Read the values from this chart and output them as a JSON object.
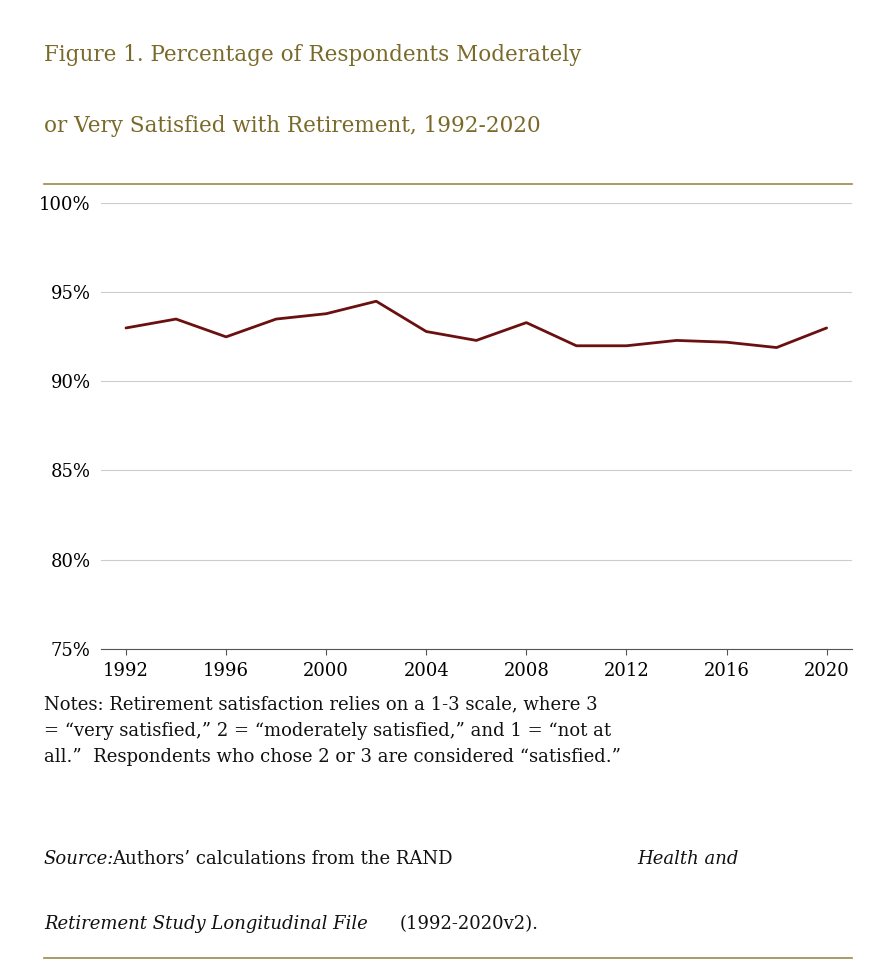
{
  "title_line1": "Figure 1. Percentage of Respondents Moderately",
  "title_line2": "or Very Satisfied with Retirement, 1992-2020",
  "years": [
    1992,
    1994,
    1996,
    1998,
    2000,
    2002,
    2004,
    2006,
    2008,
    2010,
    2012,
    2014,
    2016,
    2018,
    2020
  ],
  "values": [
    93.0,
    93.5,
    92.5,
    93.5,
    93.8,
    94.5,
    92.8,
    92.3,
    93.3,
    92.0,
    92.0,
    92.3,
    92.2,
    91.9,
    93.0
  ],
  "line_color": "#6B1010",
  "line_width": 2.0,
  "ylim": [
    75,
    100
  ],
  "yticks": [
    75,
    80,
    85,
    90,
    95,
    100
  ],
  "ytick_labels": [
    "75%",
    "80%",
    "85%",
    "90%",
    "95%",
    "100%"
  ],
  "xtick_labels": [
    "1992",
    "1996",
    "2000",
    "2004",
    "2008",
    "2012",
    "2016",
    "2020"
  ],
  "xtick_positions": [
    1992,
    1996,
    2000,
    2004,
    2008,
    2012,
    2016,
    2020
  ],
  "xlim": [
    1991,
    2021
  ],
  "background_color": "#ffffff",
  "grid_color": "#cccccc",
  "title_color": "#7a6a2a",
  "border_color": "#9a8a4a",
  "notes_line1": "Notes: Retirement satisfaction relies on a 1-3 scale, where 3",
  "notes_line2": "= “very satisfied,” 2 = “moderately satisfied,” and 1 = “not at",
  "notes_line3": "all.”  Respondents who chose 2 or 3 are considered “satisfied.”",
  "source_italic": "Source:",
  "source_normal": " Authors’ calculations from the RAND ",
  "source_italic2": "Health and",
  "source_line2_italic": "Retirement Study Longitudinal File",
  "source_line2_normal": " (1992-2020v2)."
}
